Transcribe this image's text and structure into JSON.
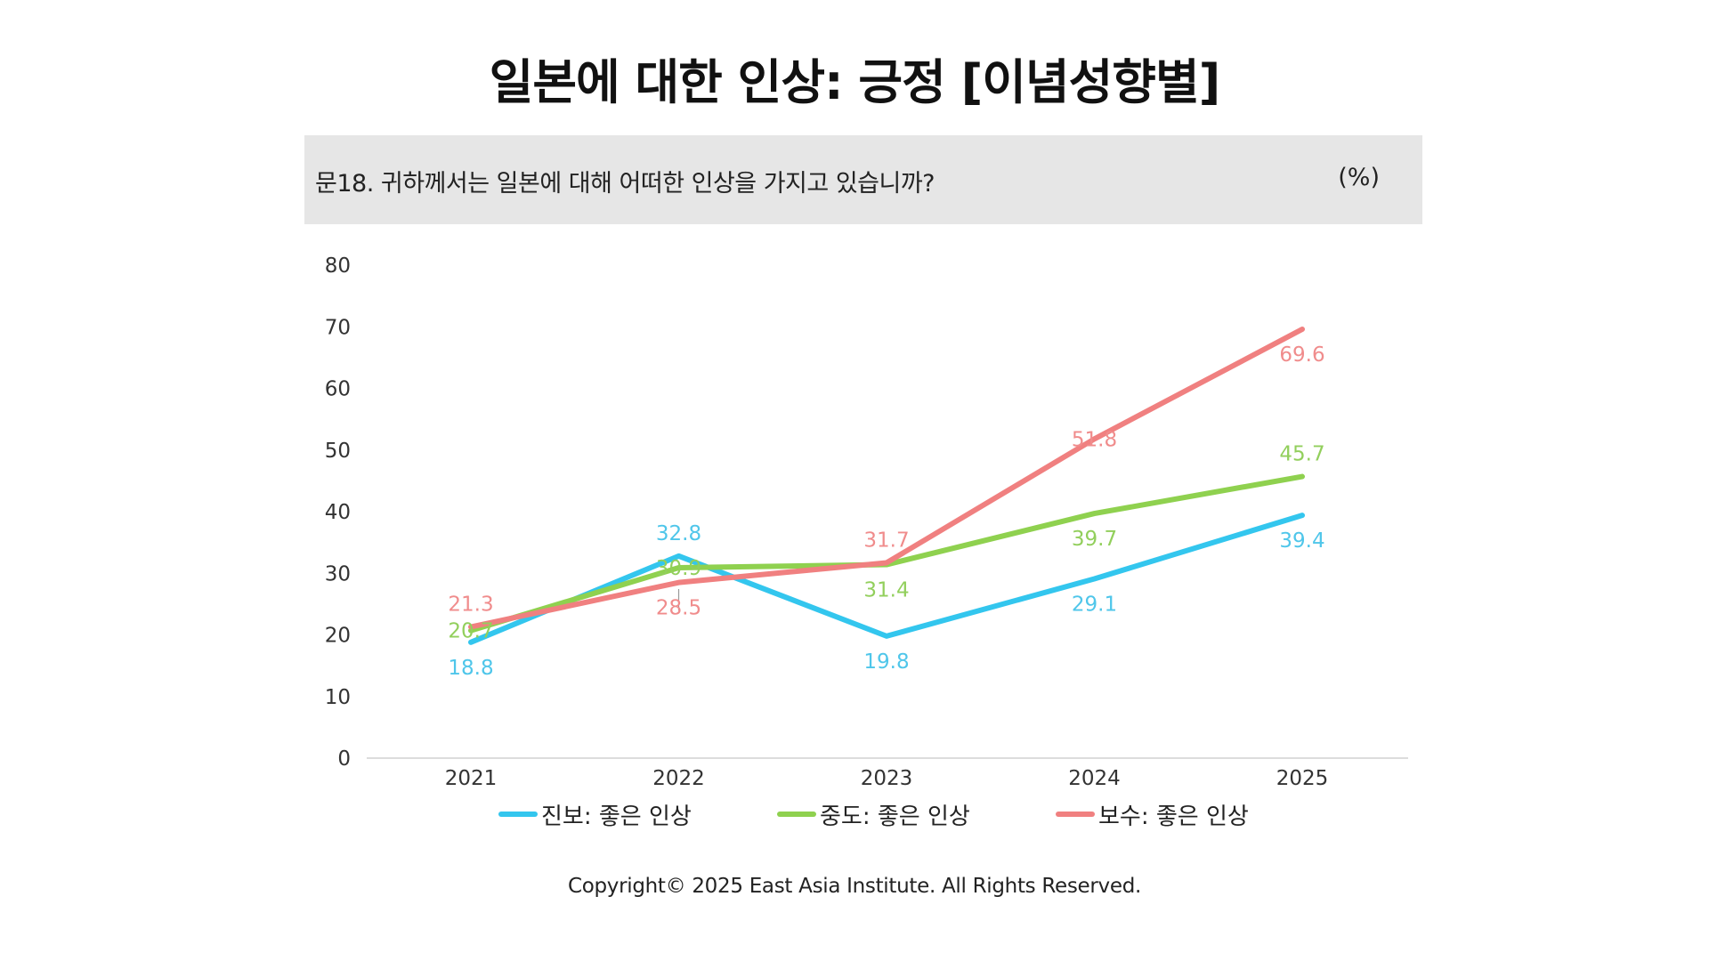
{
  "title": "일본에 대한 인상: 긍정 [이념성향별]",
  "question": {
    "text": "문18. 귀하께서는 일본에 대해 어떠한 인상을 가지고 있습니까?",
    "unit": "(%)"
  },
  "copyright": "Copyright© 2025 East Asia Institute. All Rights Reserved.",
  "chart_data": {
    "type": "line",
    "title": "일본에 대한 인상: 긍정 [이념성향별]",
    "xlabel": "",
    "ylabel": "",
    "categories": [
      "2021",
      "2022",
      "2023",
      "2024",
      "2025"
    ],
    "ylim": [
      0,
      80
    ],
    "yticks": [
      0,
      10,
      20,
      30,
      40,
      50,
      60,
      70,
      80
    ],
    "grid": false,
    "legend": "bottom",
    "series": [
      {
        "name": "진보: 좋은 인상",
        "color": "#33c6ee",
        "label_color": "#4fc6ea",
        "values": [
          18.8,
          32.8,
          19.8,
          29.1,
          39.4
        ],
        "label_pos": [
          "below",
          "above",
          "below",
          "below",
          "below"
        ]
      },
      {
        "name": "중도: 좋은 인상",
        "color": "#8fd14f",
        "label_color": "#92cf5c",
        "values": [
          20.7,
          30.9,
          31.4,
          39.7,
          45.7
        ],
        "label_pos": [
          "center",
          "center",
          "below",
          "below",
          "above"
        ]
      },
      {
        "name": "보수: 좋은 인상",
        "color": "#f08080",
        "label_color": "#f08c8c",
        "values": [
          21.3,
          28.5,
          31.7,
          51.8,
          69.6
        ],
        "label_pos": [
          "above",
          "below",
          "above",
          "center",
          "below"
        ]
      }
    ]
  }
}
